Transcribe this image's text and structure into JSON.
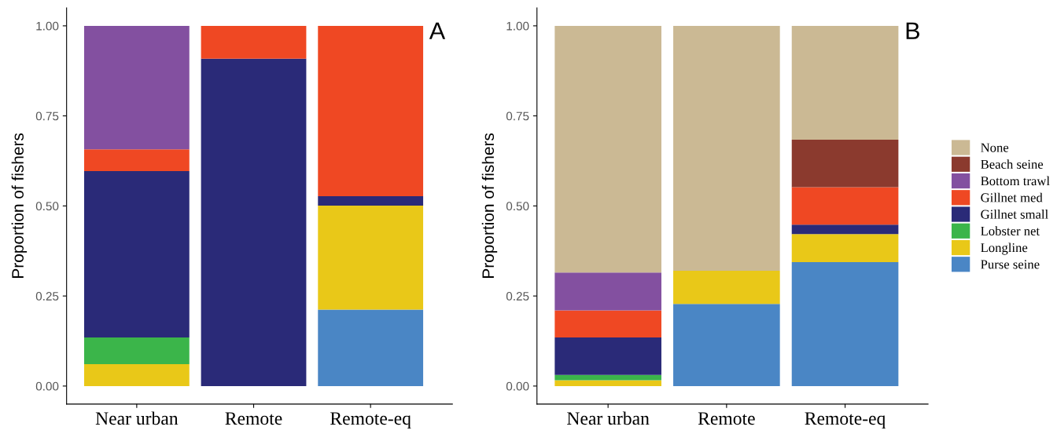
{
  "chart_data": [
    {
      "type": "bar",
      "stacked": true,
      "ylabel": "Proportion of fishers",
      "annotations": [
        "A"
      ],
      "categories": [
        "Near urban",
        "Remote",
        "Remote-eq"
      ],
      "ylim": [
        -0.05,
        1.05
      ],
      "yticks": [
        {
          "value": 0,
          "label": "0.00"
        },
        {
          "value": 0.25,
          "label": "0.25"
        },
        {
          "value": 0.5,
          "label": "0.50"
        },
        {
          "value": 0.75,
          "label": "0.75"
        },
        {
          "value": 1,
          "label": "1.00"
        }
      ],
      "grid": false,
      "legend": false,
      "series": [
        {
          "color": "#4a86c5",
          "values": [
            null,
            null,
            0.212
          ]
        },
        {
          "color": "#e9c818",
          "values": [
            0.061,
            null,
            0.289
          ]
        },
        {
          "color": "#3bb54a",
          "values": [
            0.074,
            null,
            null
          ]
        },
        {
          "color": "#2a2a78",
          "values": [
            0.462,
            0.909,
            0.026
          ]
        },
        {
          "color": "#ef4823",
          "values": [
            0.06,
            0.091,
            0.473
          ]
        },
        {
          "color": "#8350a0",
          "values": [
            0.343,
            null,
            null
          ]
        }
      ]
    },
    {
      "type": "bar",
      "stacked": true,
      "ylabel": "Proportion of fishers",
      "annotations": [
        "B"
      ],
      "categories": [
        "Near urban",
        "Remote",
        "Remote-eq"
      ],
      "ylim": [
        -0.05,
        1.05
      ],
      "yticks": [
        {
          "value": 0,
          "label": "0.00"
        },
        {
          "value": 0.25,
          "label": "0.25"
        },
        {
          "value": 0.5,
          "label": "0.50"
        },
        {
          "value": 0.75,
          "label": "0.75"
        },
        {
          "value": 1,
          "label": "1.00"
        }
      ],
      "grid": false,
      "legend": "right",
      "series": [
        {
          "name": "Purse seine",
          "color": "#4a86c5",
          "values": [
            null,
            0.228,
            0.344
          ]
        },
        {
          "name": "Longline",
          "color": "#e9c818",
          "values": [
            0.016,
            0.092,
            0.078
          ]
        },
        {
          "name": "Lobster net",
          "color": "#3bb54a",
          "values": [
            0.015,
            null,
            null
          ]
        },
        {
          "name": "Gillnet small",
          "color": "#2a2a78",
          "values": [
            0.104,
            null,
            0.026
          ]
        },
        {
          "name": "Gillnet med",
          "color": "#ef4823",
          "values": [
            0.075,
            null,
            0.104
          ]
        },
        {
          "name": "Bottom trawl",
          "color": "#8350a0",
          "values": [
            0.105,
            null,
            null
          ]
        },
        {
          "name": "Beach seine",
          "color": "#8b3a2e",
          "values": [
            null,
            null,
            0.132
          ]
        },
        {
          "name": "None",
          "color": "#cbb994",
          "values": [
            0.685,
            0.68,
            0.316
          ]
        }
      ]
    }
  ]
}
